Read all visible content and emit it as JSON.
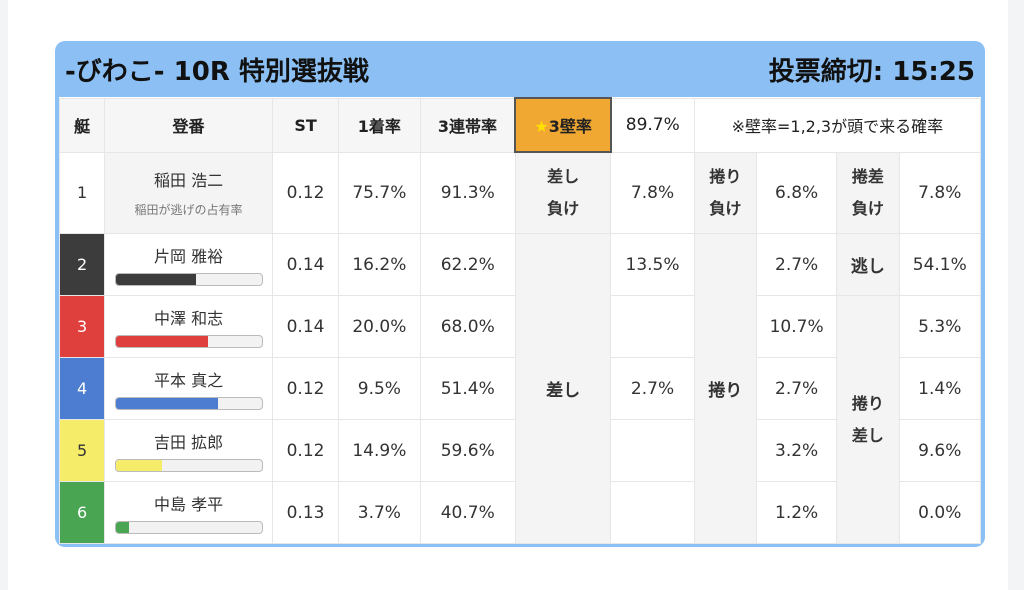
{
  "header": {
    "title": "-びわこ- 10R 特別選抜戦",
    "deadline": "投票締切: 15:25"
  },
  "columns": {
    "boat": "艇",
    "entry": "登番",
    "st": "ST",
    "win1": "1着率",
    "top3": "3連帯率",
    "kabe_star": "★",
    "kabe_label": "3壁率",
    "kabe_value": "89.7%",
    "note": "※壁率=1,2,3が頭で来る確率"
  },
  "rows": [
    {
      "no": "1",
      "name": "稲田 浩二",
      "sub": "稲田が逃げの占有率",
      "st": "0.12",
      "win1": "75.7%",
      "top3": "91.3%",
      "c1_label": "差し\n負け",
      "c1_val": "7.8%",
      "c2_label": "捲り\n負け",
      "c2_val": "6.8%",
      "c3_label": "捲差\n負け",
      "c3_val": "7.8%"
    },
    {
      "no": "2",
      "name": "片岡 雅裕",
      "bar": 0.55,
      "bar_color": "#3c3c3c",
      "st": "0.14",
      "win1": "16.2%",
      "top3": "62.2%",
      "c1_val": "13.5%",
      "c2_val": "2.7%",
      "c3_label": "逃し",
      "c3_val": "54.1%"
    },
    {
      "no": "3",
      "name": "中澤 和志",
      "bar": 0.63,
      "bar_color": "#e0403d",
      "st": "0.14",
      "win1": "20.0%",
      "top3": "68.0%",
      "c1_val": "",
      "c2_val": "10.7%",
      "c3_val": "5.3%"
    },
    {
      "no": "4",
      "name": "平本 真之",
      "bar": 0.7,
      "bar_color": "#4d7dd0",
      "st": "0.12",
      "win1": "9.5%",
      "top3": "51.4%",
      "c1_val": "2.7%",
      "c2_val": "2.7%",
      "c3_val": "1.4%"
    },
    {
      "no": "5",
      "name": "吉田 拡郎",
      "bar": 0.32,
      "bar_color": "#f5ec6a",
      "st": "0.12",
      "win1": "14.9%",
      "top3": "59.6%",
      "c1_val": "",
      "c2_val": "3.2%",
      "c3_val": "9.6%"
    },
    {
      "no": "6",
      "name": "中島 孝平",
      "bar": 0.09,
      "bar_color": "#4aa553",
      "st": "0.13",
      "win1": "3.7%",
      "top3": "40.7%",
      "c1_val": "",
      "c2_val": "1.2%",
      "c3_val": "0.0%"
    }
  ],
  "merged": {
    "sashi": "差し",
    "makuri": "捲り",
    "makurisashi": "捲り\n差し"
  },
  "colors": {
    "header_bg": "#8cc0f4",
    "kabe_bg": "#f0a832"
  }
}
